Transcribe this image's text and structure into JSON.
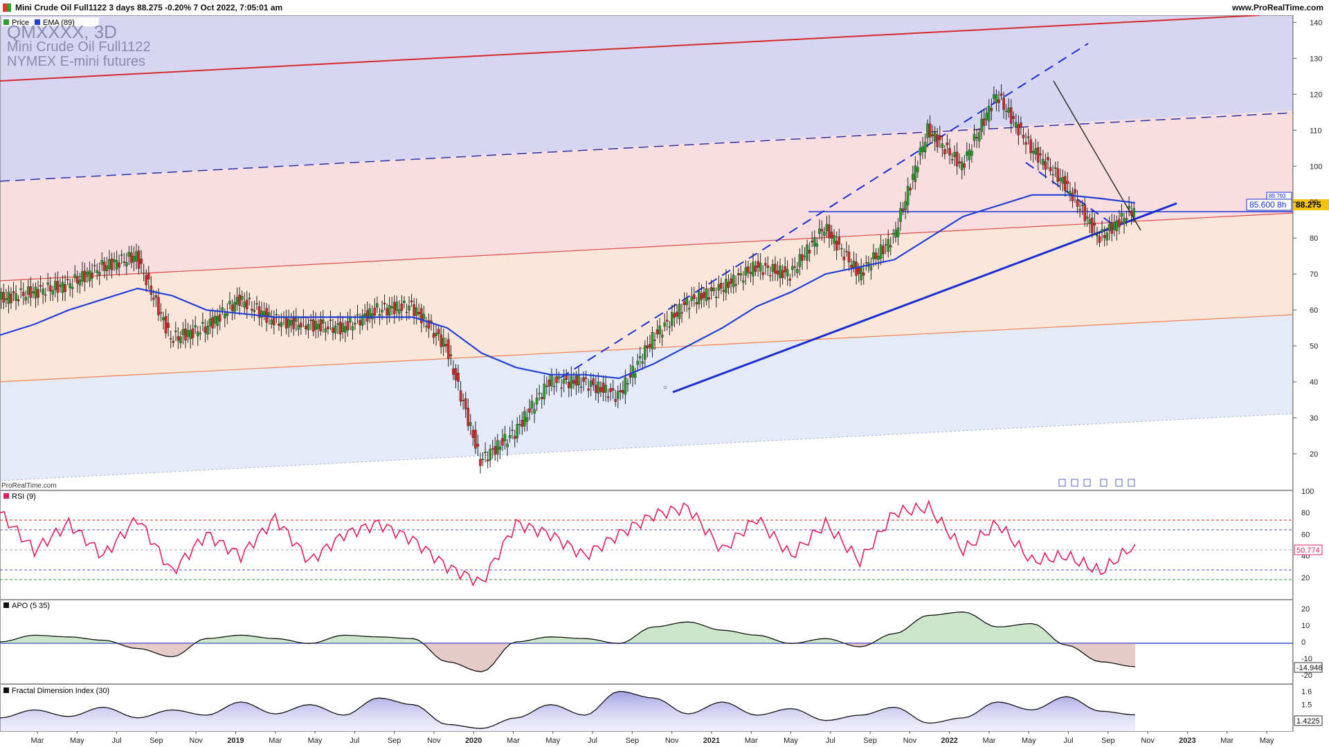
{
  "header": {
    "title": "Mini Crude Oil Full1122 3 days 88.275 -0.20% 7 Oct 2022, 7:05:01 am",
    "site": "www.ProRealTime.com"
  },
  "main_panel": {
    "legend": [
      {
        "label": "Price",
        "color": "#2a9d2a"
      },
      {
        "label": "EMA (89)",
        "color": "#1f3fd6"
      }
    ],
    "symbol": "QMXXXX, 3D",
    "instrument": "Mini Crude Oil Full1122",
    "exchange": "NYMEX E-mini futures",
    "watermark": "ProRealTime.com",
    "hline_label": "85.600 8h",
    "ema_label": "89.793",
    "price_label": "88.275",
    "y_ticks": [
      "140",
      "130",
      "120",
      "110",
      "100",
      "90",
      "80",
      "70",
      "60",
      "50",
      "40",
      "30",
      "20"
    ]
  },
  "rsi_panel": {
    "label": "RSI (9)",
    "y_ticks": [
      "100",
      "80",
      "60",
      "40",
      "20"
    ],
    "value_label": "50.774"
  },
  "apo_panel": {
    "label": "APO (5 35)",
    "y_ticks": [
      "20",
      "10",
      "0",
      "-10",
      "-20"
    ],
    "value_label": "-14.946"
  },
  "fdi_panel": {
    "label": "Fractal Dimension Index (30)",
    "y_ticks": [
      "1.6",
      "1.5",
      "1.4"
    ],
    "value_label": "1.4225"
  },
  "x_axis": {
    "labels": [
      "Mar",
      "May",
      "Jul",
      "Sep",
      "Nov",
      "2019",
      "Mar",
      "May",
      "Jul",
      "Sep",
      "Nov",
      "2020",
      "Mar",
      "May",
      "Jul",
      "Sep",
      "Nov",
      "2021",
      "Mar",
      "May",
      "Jul",
      "Sep",
      "Nov",
      "2022",
      "Mar",
      "May",
      "Jul",
      "Sep",
      "Nov",
      "2023",
      "Mar",
      "May"
    ]
  },
  "chart_data": [
    {
      "type": "line",
      "title": "Mini Crude Oil Full1122 3D",
      "x": [
        "2018-02",
        "2018-04",
        "2018-06",
        "2018-08",
        "2018-10",
        "2018-12",
        "2019-02",
        "2019-04",
        "2019-06",
        "2019-08",
        "2019-10",
        "2019-12",
        "2020-01",
        "2020-03",
        "2020-04",
        "2020-05",
        "2020-07",
        "2020-09",
        "2020-11",
        "2021-01",
        "2021-03",
        "2021-05",
        "2021-07",
        "2021-09",
        "2021-10",
        "2021-12",
        "2022-01",
        "2022-03",
        "2022-04",
        "2022-06",
        "2022-07",
        "2022-08",
        "2022-09",
        "2022-10"
      ],
      "series": [
        {
          "name": "Price",
          "values": [
            63,
            65,
            67,
            72,
            75,
            52,
            55,
            63,
            57,
            56,
            55,
            60,
            61,
            50,
            18,
            26,
            40,
            40,
            36,
            52,
            62,
            66,
            72,
            70,
            83,
            70,
            80,
            110,
            100,
            120,
            105,
            95,
            80,
            88.3
          ]
        },
        {
          "name": "EMA (89)",
          "values": [
            53,
            56,
            60,
            63,
            66,
            64,
            60,
            59,
            58,
            58,
            58,
            58,
            58,
            55,
            48,
            44,
            42,
            42,
            41,
            45,
            50,
            55,
            61,
            65,
            70,
            72,
            74,
            80,
            86,
            89,
            92,
            92,
            91,
            89.8
          ]
        }
      ],
      "ylim": [
        10,
        142
      ],
      "legend": "top-left",
      "annotations": [
        {
          "label": "85.600 8h",
          "y": 85.6
        }
      ]
    },
    {
      "type": "line",
      "title": "RSI (9)",
      "ylim": [
        0,
        100
      ],
      "levels": [
        80,
        70,
        30,
        20
      ],
      "series": [
        {
          "name": "RSI (9)",
          "values": [
            80,
            45,
            70,
            40,
            75,
            25,
            60,
            40,
            75,
            35,
            60,
            70,
            55,
            30,
            15,
            70,
            60,
            40,
            60,
            78,
            85,
            45,
            75,
            40,
            70,
            35,
            80,
            85,
            45,
            70,
            35,
            40,
            25,
            50.774
          ]
        }
      ]
    },
    {
      "type": "area",
      "title": "APO (5 35)",
      "ylim": [
        -25,
        25
      ],
      "series": [
        {
          "name": "APO (5 35)",
          "values": [
            0,
            4,
            3,
            1,
            -4,
            -9,
            2,
            4,
            2,
            -1,
            4,
            3,
            2,
            -12,
            -18,
            0,
            3,
            2,
            -1,
            9,
            12,
            7,
            4,
            -1,
            2,
            -3,
            5,
            16,
            18,
            9,
            11,
            -2,
            -12,
            -14.946
          ]
        }
      ]
    },
    {
      "type": "area",
      "title": "Fractal Dimension Index (30)",
      "ylim": [
        1.3,
        1.65
      ],
      "series": [
        {
          "name": "Fractal Dimension Index (30)",
          "values": [
            1.4,
            1.46,
            1.41,
            1.48,
            1.4,
            1.46,
            1.42,
            1.52,
            1.43,
            1.5,
            1.42,
            1.55,
            1.5,
            1.35,
            1.32,
            1.4,
            1.5,
            1.42,
            1.6,
            1.55,
            1.43,
            1.52,
            1.42,
            1.47,
            1.38,
            1.42,
            1.48,
            1.36,
            1.4,
            1.52,
            1.46,
            1.56,
            1.45,
            1.4225
          ]
        }
      ]
    }
  ]
}
